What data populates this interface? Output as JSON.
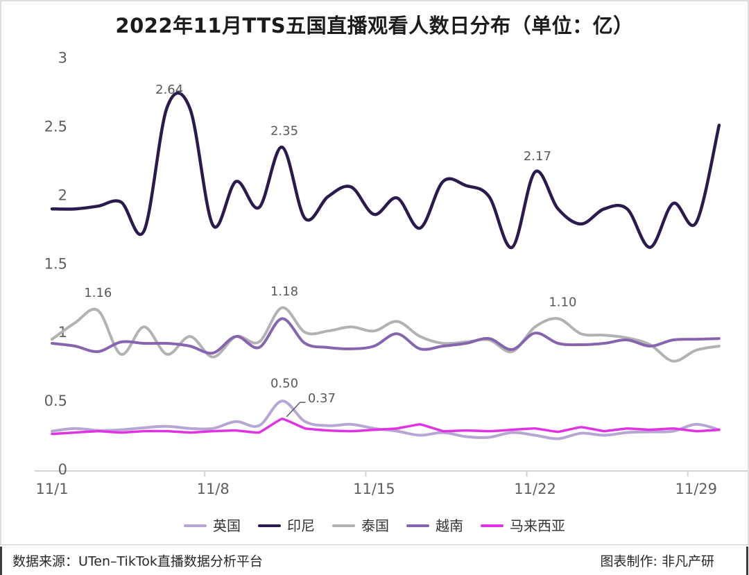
{
  "title": "2022年11月TTS五国直播观看人数日分布（单位：亿）",
  "footer": {
    "source": "数据来源：UTen–TikTok直播数据分析平台",
    "credit": "图表制作: 非凡产研"
  },
  "chart_data": {
    "type": "line",
    "x_unit": "day of November 2022",
    "days": [
      1,
      2,
      3,
      4,
      5,
      6,
      7,
      8,
      9,
      10,
      11,
      12,
      13,
      14,
      15,
      16,
      17,
      18,
      19,
      20,
      21,
      22,
      23,
      24,
      25,
      26,
      27,
      28,
      29,
      30
    ],
    "x_labels": [
      {
        "day": 1,
        "label": "11/1"
      },
      {
        "day": 8,
        "label": "11/8"
      },
      {
        "day": 15,
        "label": "11/15"
      },
      {
        "day": 22,
        "label": "11/22"
      },
      {
        "day": 29,
        "label": "11/29"
      }
    ],
    "y_ticks": [
      {
        "value": 0,
        "label": "0"
      },
      {
        "value": 0.5,
        "label": "0.5"
      },
      {
        "value": 1,
        "label": "1"
      },
      {
        "value": 1.5,
        "label": "1.5"
      },
      {
        "value": 2,
        "label": "2"
      },
      {
        "value": 2.5,
        "label": "2.5"
      },
      {
        "value": 3,
        "label": "3"
      }
    ],
    "ylim": [
      0,
      3
    ],
    "series": [
      {
        "id": "uk",
        "name": "英国",
        "color": "#b7a6d3",
        "width": 4,
        "smooth": 1,
        "values": [
          0.28,
          0.3,
          0.285,
          0.29,
          0.305,
          0.315,
          0.3,
          0.3,
          0.35,
          0.32,
          0.5,
          0.35,
          0.32,
          0.33,
          0.3,
          0.28,
          0.25,
          0.27,
          0.24,
          0.235,
          0.27,
          0.25,
          0.225,
          0.265,
          0.25,
          0.27,
          0.275,
          0.28,
          0.33,
          0.29
        ]
      },
      {
        "id": "indonesia",
        "name": "印尼",
        "color": "#2b1a4e",
        "width": 4.5,
        "smooth": 1,
        "values": [
          1.9,
          1.9,
          1.92,
          1.95,
          1.74,
          2.64,
          2.63,
          1.78,
          2.1,
          1.91,
          2.35,
          1.83,
          1.99,
          2.06,
          1.86,
          1.98,
          1.76,
          2.1,
          2.07,
          1.99,
          1.62,
          2.17,
          1.9,
          1.79,
          1.9,
          1.9,
          1.62,
          1.94,
          1.8,
          2.51
        ]
      },
      {
        "id": "thailand",
        "name": "泰国",
        "color": "#b3b1b3",
        "width": 4,
        "smooth": 1,
        "values": [
          0.95,
          1.07,
          1.16,
          0.84,
          1.04,
          0.84,
          0.97,
          0.82,
          0.97,
          0.93,
          1.18,
          1.0,
          1.01,
          1.04,
          1.01,
          1.08,
          0.97,
          0.92,
          0.93,
          0.945,
          0.86,
          1.04,
          1.1,
          0.99,
          0.98,
          0.96,
          0.91,
          0.79,
          0.87,
          0.9
        ]
      },
      {
        "id": "vietnam",
        "name": "越南",
        "color": "#8565ae",
        "width": 4,
        "smooth": 1,
        "values": [
          0.92,
          0.9,
          0.86,
          0.93,
          0.92,
          0.92,
          0.9,
          0.85,
          0.97,
          0.89,
          1.1,
          0.92,
          0.89,
          0.88,
          0.9,
          0.99,
          0.88,
          0.9,
          0.92,
          0.955,
          0.875,
          0.995,
          0.92,
          0.91,
          0.92,
          0.945,
          0.9,
          0.945,
          0.95,
          0.955
        ]
      },
      {
        "id": "malaysia",
        "name": "马来西亚",
        "color": "#e032e3",
        "width": 3.5,
        "smooth": 0.25,
        "values": [
          0.26,
          0.27,
          0.28,
          0.27,
          0.28,
          0.28,
          0.27,
          0.28,
          0.285,
          0.27,
          0.37,
          0.3,
          0.285,
          0.28,
          0.29,
          0.3,
          0.33,
          0.28,
          0.285,
          0.28,
          0.29,
          0.3,
          0.275,
          0.31,
          0.28,
          0.3,
          0.29,
          0.3,
          0.28,
          0.29
        ]
      }
    ],
    "annotations": [
      {
        "text": "2.64",
        "day": 6.1,
        "value": 2.77,
        "anchor": "middle"
      },
      {
        "text": "2.35",
        "day": 11.1,
        "value": 2.47,
        "anchor": "middle"
      },
      {
        "text": "2.17",
        "day": 22.1,
        "value": 2.285,
        "anchor": "middle"
      },
      {
        "text": "1.16",
        "day": 3.0,
        "value": 1.29,
        "anchor": "middle"
      },
      {
        "text": "1.18",
        "day": 11.1,
        "value": 1.3,
        "anchor": "middle"
      },
      {
        "text": "1.10",
        "day": 23.2,
        "value": 1.22,
        "anchor": "middle"
      },
      {
        "text": "0.50",
        "day": 11.1,
        "value": 0.63,
        "anchor": "middle"
      },
      {
        "text": "0.37",
        "day": 12.12,
        "value": 0.52,
        "anchor": "start",
        "leader": [
          [
            11.2,
            0.385
          ],
          [
            11.78,
            0.49
          ],
          [
            12.02,
            0.49
          ]
        ]
      }
    ],
    "axis": {
      "color": "#d4d4d4",
      "label_color": "#5e5e5e",
      "annotation_color": "#595959",
      "x_tick_days": [
        8,
        15,
        22,
        29
      ]
    },
    "layout": {
      "grid": false,
      "legend_position": "bottom",
      "x0": 75,
      "x_step": 33.17,
      "y0": 677,
      "y_scale": 197.8,
      "x_axis_y": 679,
      "x_min": 50,
      "x_max": 1078,
      "tick_offset": -12,
      "tick_len": 8
    }
  }
}
